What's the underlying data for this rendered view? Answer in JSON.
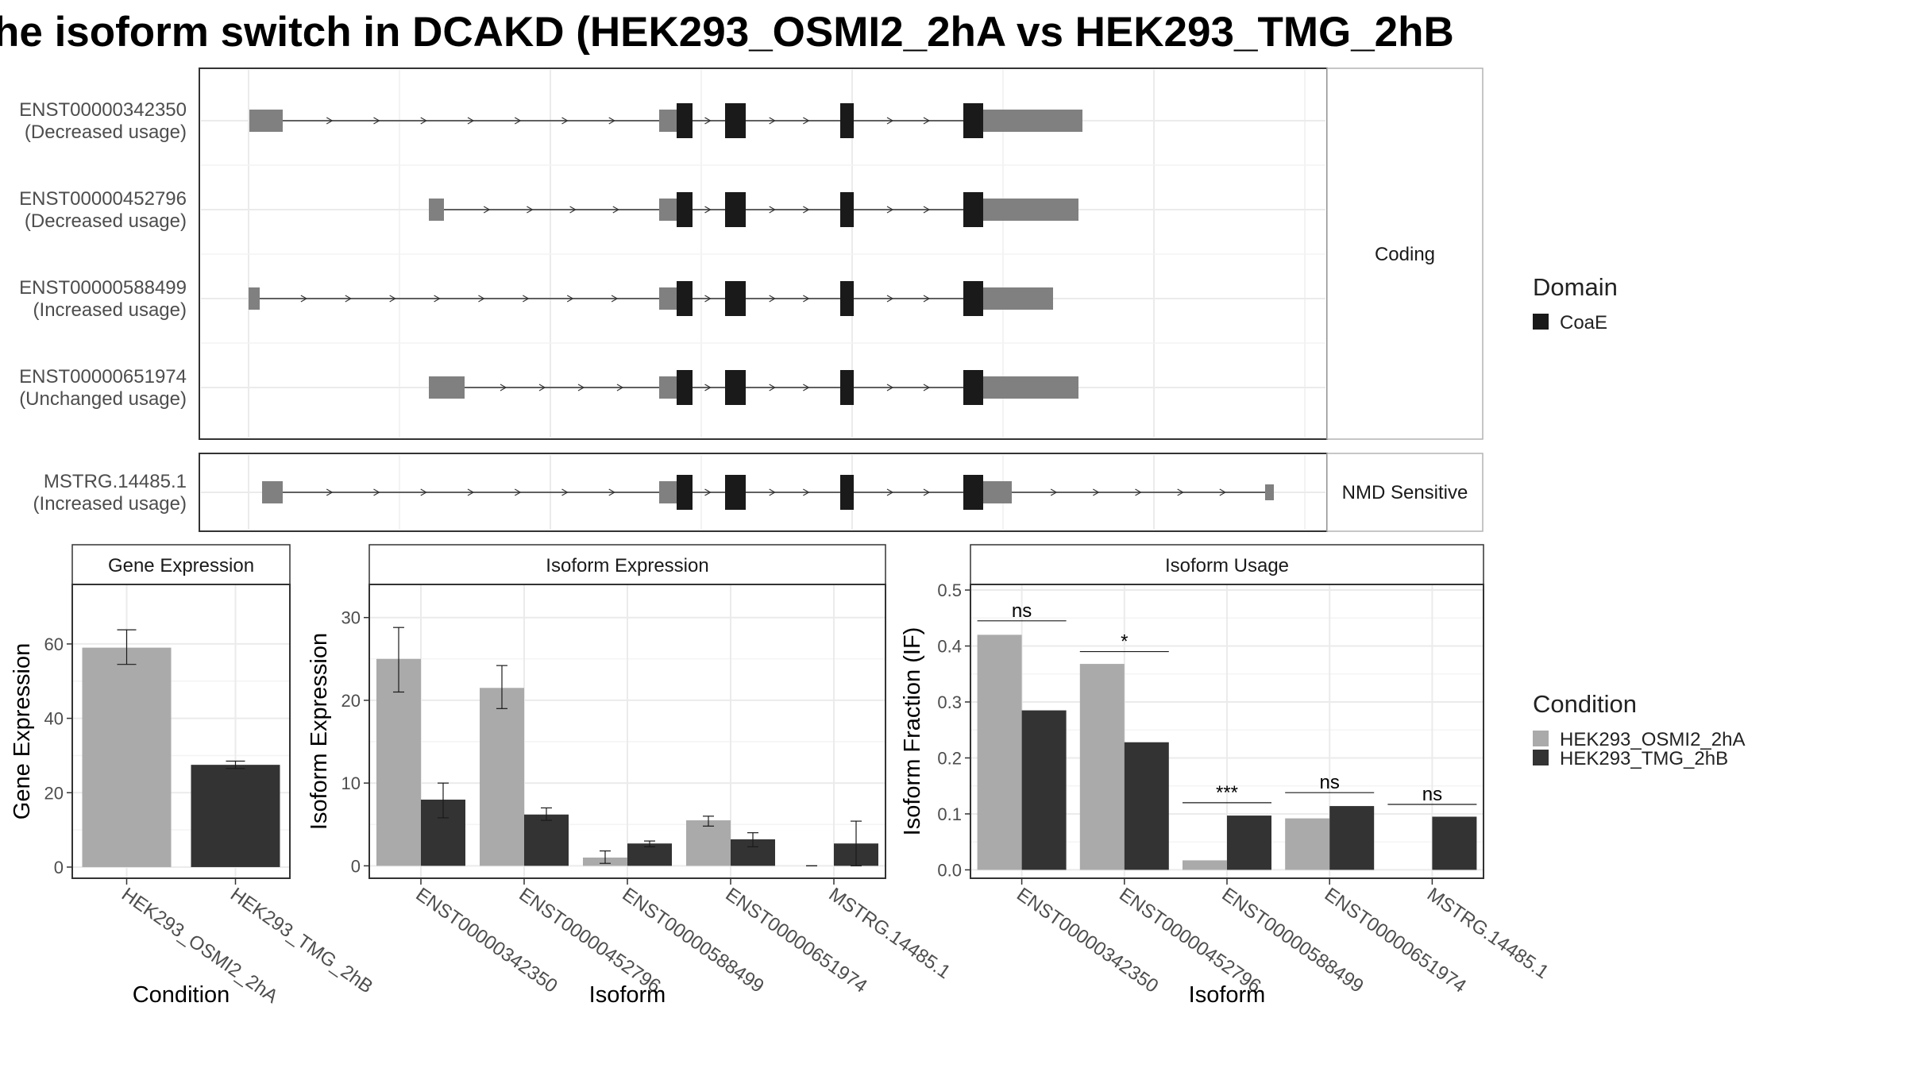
{
  "title": "he isoform switch in DCAKD (HEK293_OSMI2_2hA vs HEK293_TMG_2hB",
  "colors": {
    "condition_a": "#aaaaaa",
    "condition_b": "#333333",
    "domain": "#1a1a1a",
    "utr": "#808080"
  },
  "structure": {
    "coding_label": "Coding",
    "nmd_label": "NMD Sensitive",
    "transcripts": [
      {
        "id": "ENST00000342350",
        "usage": "(Decreased usage)",
        "group": "coding"
      },
      {
        "id": "ENST00000452796",
        "usage": "(Decreased usage)",
        "group": "coding"
      },
      {
        "id": "ENST00000588499",
        "usage": "(Increased usage)",
        "group": "coding"
      },
      {
        "id": "ENST00000651974",
        "usage": "(Unchanged usage)",
        "group": "coding"
      },
      {
        "id": "MSTRG.14485.1",
        "usage": "(Increased usage)",
        "group": "nmd"
      }
    ]
  },
  "legend_domain": {
    "title": "Domain",
    "items": [
      "CoaE"
    ]
  },
  "legend_condition": {
    "title": "Condition",
    "items": [
      "HEK293_OSMI2_2hA",
      "HEK293_TMG_2hB"
    ]
  },
  "chart_data": [
    {
      "type": "bar",
      "title": "Gene Expression",
      "xlabel": "Condition",
      "ylabel": "Gene Expression",
      "categories": [
        "HEK293_OSMI2_2hA",
        "HEK293_TMG_2hB"
      ],
      "values": [
        59,
        27.5
      ],
      "errors": [
        [
          54.5,
          63.8
        ],
        [
          26.5,
          28.5
        ]
      ],
      "ylim": [
        -3,
        76
      ],
      "yticks": [
        0,
        20,
        40,
        60
      ],
      "grid": true
    },
    {
      "type": "bar",
      "title": "Isoform Expression",
      "xlabel": "Isoform",
      "ylabel": "Isoform Expression",
      "categories": [
        "ENST00000342350",
        "ENST00000452796",
        "ENST00000588499",
        "ENST00000651974",
        "MSTRG.14485.1"
      ],
      "series": [
        {
          "name": "HEK293_OSMI2_2hA",
          "values": [
            25,
            21.5,
            1,
            5.5,
            0
          ],
          "errors": [
            [
              21,
              28.8
            ],
            [
              19,
              24.2
            ],
            [
              0.3,
              1.8
            ],
            [
              4.8,
              6
            ],
            [
              0,
              0
            ]
          ]
        },
        {
          "name": "HEK293_TMG_2hB",
          "values": [
            8,
            6.2,
            2.7,
            3.2,
            2.7
          ],
          "errors": [
            [
              5.8,
              10
            ],
            [
              5.5,
              7
            ],
            [
              2.3,
              3
            ],
            [
              2.3,
              4
            ],
            [
              0,
              5.4
            ]
          ]
        }
      ],
      "ylim": [
        -1.5,
        34
      ],
      "yticks": [
        0,
        10,
        20,
        30
      ],
      "grid": true
    },
    {
      "type": "bar",
      "title": "Isoform Usage",
      "xlabel": "Isoform",
      "ylabel": "Isoform Fraction (IF)",
      "categories": [
        "ENST00000342350",
        "ENST00000452796",
        "ENST00000588499",
        "ENST00000651974",
        "MSTRG.14485.1"
      ],
      "series": [
        {
          "name": "HEK293_OSMI2_2hA",
          "values": [
            0.42,
            0.368,
            0.017,
            0.092,
            0
          ]
        },
        {
          "name": "HEK293_TMG_2hB",
          "values": [
            0.285,
            0.228,
            0.097,
            0.114,
            0.095
          ]
        }
      ],
      "significance": [
        "ns",
        "*",
        "***",
        "ns",
        "ns"
      ],
      "significance_y": [
        0.445,
        0.39,
        0.12,
        0.138,
        0.117
      ],
      "ylim": [
        -0.015,
        0.51
      ],
      "yticks": [
        0.0,
        0.1,
        0.2,
        0.3,
        0.4,
        0.5
      ],
      "ytick_labels": [
        "0.0",
        "0.1",
        "0.2",
        "0.3",
        "0.4",
        "0.5"
      ],
      "grid": true
    }
  ]
}
